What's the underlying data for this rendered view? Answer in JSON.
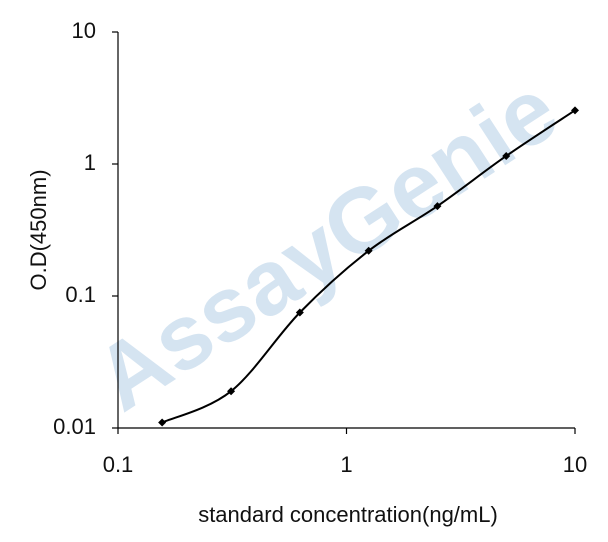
{
  "chart_data": {
    "type": "line",
    "watermark": "AssayGenie",
    "x_label": "standard concentration(ng/mL)",
    "y_label": "O.D(450nm)",
    "x": [
      0.156,
      0.3125,
      0.625,
      1.25,
      2.5,
      5,
      10
    ],
    "series": [
      {
        "color": "#000000",
        "values": [
          0.011,
          0.019,
          0.075,
          0.22,
          0.48,
          1.15,
          2.55
        ]
      }
    ],
    "xlim": [
      0.1,
      10
    ],
    "ylim": [
      0.01,
      10
    ],
    "xticks": [
      0.1,
      1,
      10
    ],
    "yticks": [
      0.01,
      0.1,
      1,
      10
    ],
    "xscale": "log",
    "yscale": "log",
    "grid": false
  }
}
